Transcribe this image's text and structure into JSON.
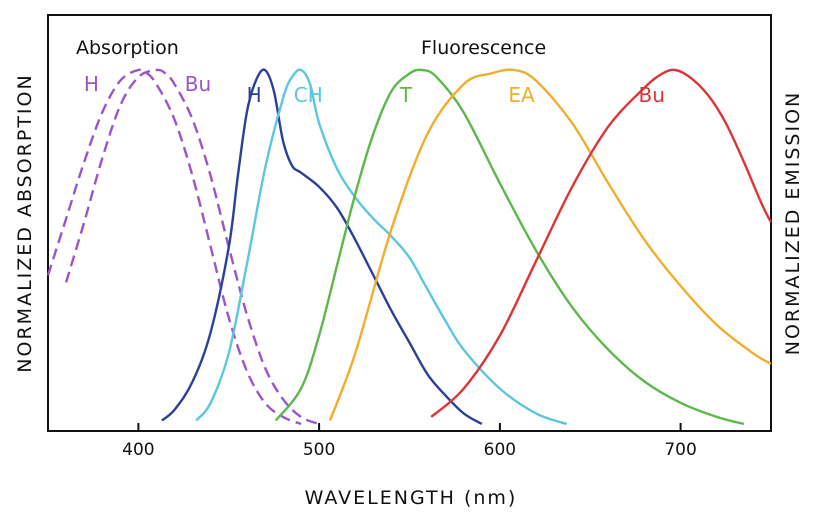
{
  "chart_data": {
    "type": "line",
    "xlabel": "WAVELENGTH (nm)",
    "ylabel_left": "NORMALIZED ABSORPTION",
    "ylabel_right": "NORMALIZED EMISSION",
    "xlim": [
      350,
      750
    ],
    "ylim": [
      0,
      1
    ],
    "x_ticks": [
      400,
      500,
      600,
      700
    ],
    "grid": false,
    "group_labels": {
      "absorption": "Absorption",
      "fluorescence": "Fluorescence"
    },
    "series": [
      {
        "name": "H",
        "group": "Absorption",
        "color": "#9b55c8",
        "dashed": true,
        "x": [
          350,
          360,
          370,
          380,
          390,
          400,
          405,
          410,
          420,
          430,
          440,
          450,
          460,
          470,
          480,
          490
        ],
        "y": [
          0.42,
          0.58,
          0.74,
          0.88,
          0.97,
          1.0,
          0.99,
          0.96,
          0.86,
          0.7,
          0.5,
          0.3,
          0.15,
          0.06,
          0.02,
          0.0
        ]
      },
      {
        "name": "Bu",
        "group": "Absorption",
        "color": "#9b55c8",
        "dashed": true,
        "x": [
          360,
          370,
          380,
          390,
          400,
          410,
          415,
          420,
          430,
          440,
          450,
          460,
          470,
          480,
          490,
          500
        ],
        "y": [
          0.4,
          0.57,
          0.75,
          0.9,
          0.98,
          1.0,
          0.99,
          0.96,
          0.86,
          0.7,
          0.5,
          0.31,
          0.16,
          0.07,
          0.02,
          0.0
        ]
      },
      {
        "name": "H",
        "group": "Fluorescence",
        "color": "#2c3f9a",
        "dashed": false,
        "x": [
          413,
          420,
          430,
          440,
          450,
          455,
          460,
          465,
          470,
          475,
          480,
          485,
          490,
          500,
          510,
          520,
          530,
          540,
          550,
          560,
          570,
          580,
          590
        ],
        "y": [
          0.01,
          0.04,
          0.12,
          0.26,
          0.5,
          0.7,
          0.88,
          0.97,
          1.0,
          0.94,
          0.8,
          0.73,
          0.71,
          0.67,
          0.61,
          0.52,
          0.42,
          0.32,
          0.23,
          0.14,
          0.08,
          0.03,
          0.0
        ]
      },
      {
        "name": "CH",
        "group": "Fluorescence",
        "color": "#5cc6e0",
        "dashed": false,
        "x": [
          432,
          440,
          450,
          460,
          470,
          480,
          485,
          490,
          495,
          500,
          510,
          520,
          530,
          540,
          550,
          560,
          570,
          580,
          600,
          620,
          637
        ],
        "y": [
          0.01,
          0.06,
          0.2,
          0.45,
          0.72,
          0.92,
          0.98,
          1.0,
          0.96,
          0.85,
          0.72,
          0.64,
          0.58,
          0.53,
          0.47,
          0.38,
          0.29,
          0.21,
          0.1,
          0.03,
          0.0
        ]
      },
      {
        "name": "T",
        "group": "Fluorescence",
        "color": "#5cb84a",
        "dashed": false,
        "x": [
          476,
          490,
          500,
          510,
          520,
          530,
          540,
          550,
          557,
          565,
          580,
          600,
          620,
          640,
          660,
          680,
          700,
          720,
          735
        ],
        "y": [
          0.01,
          0.1,
          0.25,
          0.45,
          0.65,
          0.82,
          0.94,
          0.99,
          1.0,
          0.98,
          0.88,
          0.68,
          0.49,
          0.33,
          0.21,
          0.12,
          0.06,
          0.02,
          0.0
        ]
      },
      {
        "name": "EA",
        "group": "Fluorescence",
        "color": "#f2ad2b",
        "dashed": false,
        "x": [
          506,
          520,
          540,
          560,
          580,
          595,
          608,
          620,
          640,
          660,
          680,
          700,
          720,
          740,
          750
        ],
        "y": [
          0.01,
          0.2,
          0.55,
          0.82,
          0.96,
          0.99,
          1.0,
          0.97,
          0.85,
          0.68,
          0.52,
          0.39,
          0.28,
          0.2,
          0.17
        ]
      },
      {
        "name": "Bu",
        "group": "Fluorescence",
        "color": "#dd3535",
        "dashed": false,
        "x": [
          562,
          580,
          600,
          620,
          640,
          660,
          680,
          690,
          697,
          705,
          715,
          725,
          735,
          745,
          750
        ],
        "y": [
          0.02,
          0.1,
          0.25,
          0.46,
          0.67,
          0.84,
          0.95,
          0.99,
          1.0,
          0.98,
          0.93,
          0.85,
          0.74,
          0.62,
          0.57
        ]
      }
    ],
    "series_label_anchors": [
      {
        "name": "H",
        "color": "#9b55c8",
        "x": 374,
        "y": 0.94
      },
      {
        "name": "Bu",
        "color": "#9b55c8",
        "x": 433,
        "y": 0.94
      },
      {
        "name": "H",
        "color": "#2c3f9a",
        "x": 464,
        "y": 0.91
      },
      {
        "name": "CH",
        "color": "#5cc6e0",
        "x": 494,
        "y": 0.91
      },
      {
        "name": "T",
        "color": "#5cb84a",
        "x": 548,
        "y": 0.91
      },
      {
        "name": "EA",
        "color": "#f2ad2b",
        "x": 612,
        "y": 0.91
      },
      {
        "name": "Bu",
        "color": "#dd3535",
        "x": 684,
        "y": 0.91
      }
    ]
  }
}
